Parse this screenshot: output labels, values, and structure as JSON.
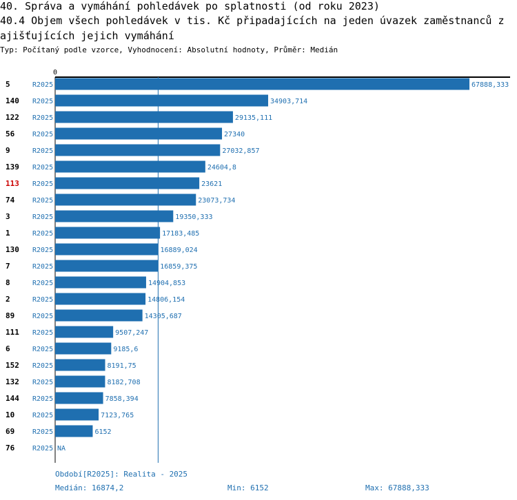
{
  "title_main": "40. Správa a vymáhání pohledávek po splatnosti (od roku 2023)",
  "title_sub_line1": "40.4 Objem všech pohledávek v tis. Kč připadajících na jeden úvazek zaměstnanců z",
  "title_sub_line2": "ajišťujících jejich vymáhání",
  "subtitle": "Typ: Počítaný podle vzorce, Vyhodnocení: Absolutní hodnoty, Průměr: Medián",
  "colors": {
    "bar": "#1f6fb0",
    "highlight": "#cc0000",
    "text_blue": "#1f6fb0"
  },
  "chart_data": {
    "type": "bar",
    "orientation": "horizontal",
    "x_tick_label": "0",
    "xlim": [
      0,
      67888.333
    ],
    "median_line": 16874.2,
    "highlighted_category": "113",
    "categories": [
      "5",
      "140",
      "122",
      "56",
      "9",
      "139",
      "113",
      "74",
      "3",
      "1",
      "130",
      "7",
      "8",
      "2",
      "89",
      "111",
      "6",
      "152",
      "132",
      "144",
      "10",
      "69",
      "76"
    ],
    "period_labels": [
      "R2025",
      "R2025",
      "R2025",
      "R2025",
      "R2025",
      "R2025",
      "R2025",
      "R2025",
      "R2025",
      "R2025",
      "R2025",
      "R2025",
      "R2025",
      "R2025",
      "R2025",
      "R2025",
      "R2025",
      "R2025",
      "R2025",
      "R2025",
      "R2025",
      "R2025",
      "R2025"
    ],
    "values": [
      67888.333,
      34903.714,
      29135.111,
      27340,
      27032.857,
      24604.8,
      23621,
      23073.734,
      19350.333,
      17183.485,
      16889.024,
      16859.375,
      14904.853,
      14806.154,
      14305.687,
      9507.247,
      9185.6,
      8191.75,
      8182.708,
      7858.394,
      7123.765,
      6152,
      null
    ],
    "value_labels": [
      "67888,333",
      "34903,714",
      "29135,111",
      "27340",
      "27032,857",
      "24604,8",
      "23621",
      "23073,734",
      "19350,333",
      "17183,485",
      "16889,024",
      "16859,375",
      "14904,853",
      "14806,154",
      "14305,687",
      "9507,247",
      "9185,6",
      "8191,75",
      "8182,708",
      "7858,394",
      "7123,765",
      "6152",
      "NA"
    ]
  },
  "footer": {
    "period": "Období[R2025]: Realita - 2025",
    "median": "Medián: 16874,2",
    "min": "Min: 6152",
    "max": "Max: 67888,333"
  }
}
